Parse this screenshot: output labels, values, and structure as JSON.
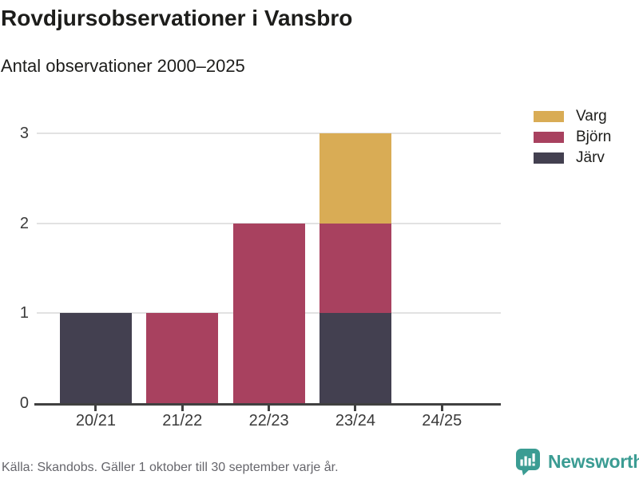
{
  "header": {
    "title": "Rovdjursobservationer i Vansbro",
    "subtitle": "Antal observationer 2000–2025"
  },
  "chart_data": {
    "type": "bar",
    "stacked": true,
    "title": "Rovdjursobservationer i Vansbro",
    "subtitle": "Antal observationer 2000–2025",
    "categories": [
      "20/21",
      "21/22",
      "22/23",
      "23/24",
      "24/25"
    ],
    "series": [
      {
        "name": "Varg",
        "color": "#d9ac55",
        "values": [
          0,
          0,
          0,
          1,
          0
        ]
      },
      {
        "name": "Björn",
        "color": "#a8415f",
        "values": [
          0,
          1,
          2,
          1,
          0
        ]
      },
      {
        "name": "Järv",
        "color": "#434050",
        "values": [
          1,
          0,
          0,
          1,
          0
        ]
      }
    ],
    "stack_order_bottom_to_top": [
      "Järv",
      "Björn",
      "Varg"
    ],
    "totals_by_category": [
      1,
      1,
      2,
      3,
      0
    ],
    "ylim": [
      0,
      3
    ],
    "yticks": [
      0,
      1,
      2,
      3
    ],
    "grid": true,
    "legend_position": "top-right",
    "xlabel": "",
    "ylabel": ""
  },
  "legend": {
    "items": [
      "Varg",
      "Björn",
      "Järv"
    ]
  },
  "footer": {
    "source": "Källa: Skandobs. Gäller 1 oktober till 30 september varje år.",
    "brand": "Newsworthy"
  },
  "colors": {
    "varg": "#d9ac55",
    "bjorn": "#a8415f",
    "jarv": "#434050",
    "axis": "#404040",
    "grid": "#e2e2e2",
    "text": "#1d1d1b",
    "muted": "#66666c",
    "brand_teal": "#3b9c93"
  }
}
